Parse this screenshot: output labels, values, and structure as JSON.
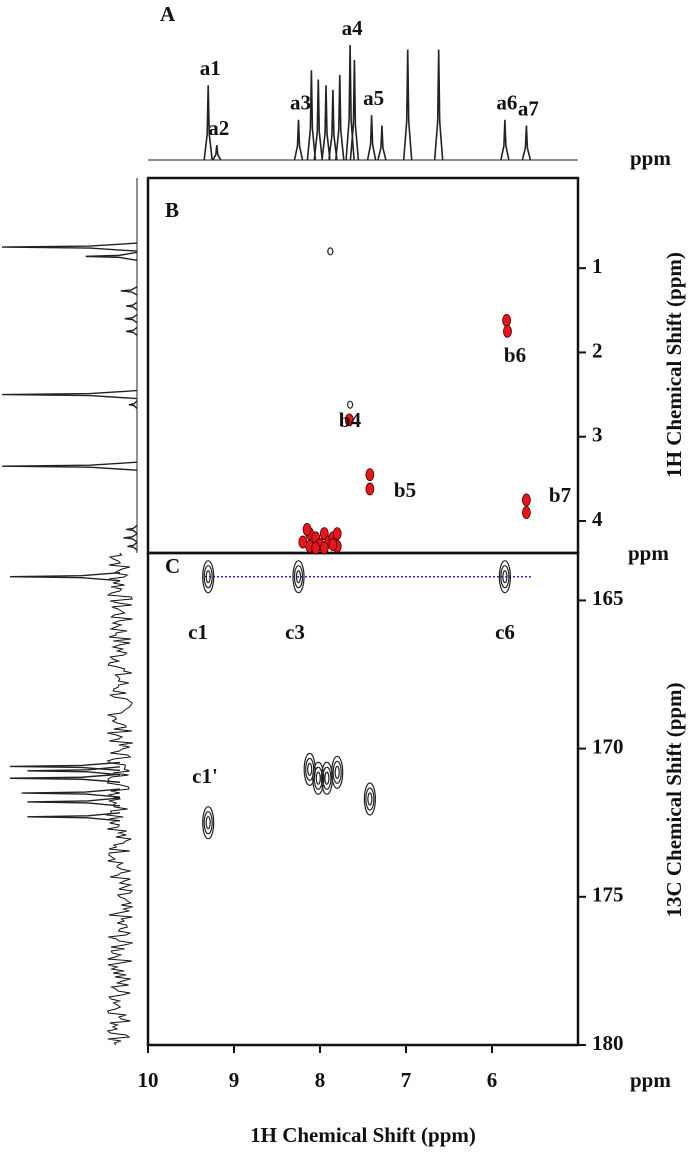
{
  "chart_data": [
    {
      "type": "spectrum",
      "title": "A",
      "unit": "ppm",
      "xlim": [
        10,
        5
      ],
      "color": "#222222",
      "peaks": {
        "x": [
          9.3,
          9.2,
          8.25,
          8.1,
          8.02,
          7.93,
          7.85,
          7.77,
          7.65,
          7.6,
          7.4,
          7.28,
          6.98,
          6.62,
          5.85,
          5.6
        ],
        "values": [
          65,
          13,
          35,
          78,
          70,
          65,
          61,
          74,
          100,
          87,
          39,
          30,
          96,
          96,
          35,
          30
        ],
        "labels": [
          "a1",
          "a2",
          "a3",
          null,
          null,
          null,
          null,
          null,
          "a4",
          null,
          "a5",
          null,
          null,
          null,
          "a6",
          "a7"
        ]
      }
    },
    {
      "type": "contour",
      "title": "B",
      "ylabel": "1H Chemical Shift (ppm)",
      "xlim": [
        10,
        5
      ],
      "ylim": [
        -0.07,
        4.38
      ],
      "yticks": [
        1,
        2,
        3,
        4
      ],
      "series": [
        {
          "color": "#222222",
          "x": [
            7.88,
            7.65
          ],
          "y": [
            0.8,
            2.62
          ]
        },
        {
          "color": "#e8151b",
          "x": [
            5.83,
            5.82,
            7.66,
            7.42,
            7.42,
            5.6,
            5.6,
            8.12,
            8.12,
            8.05,
            8.0,
            7.95,
            7.9,
            7.85,
            7.8,
            8.2,
            8.15,
            8.05,
            7.95,
            7.85,
            7.8
          ],
          "y": [
            1.62,
            1.75,
            2.8,
            3.45,
            3.62,
            3.75,
            3.9,
            4.15,
            4.3,
            4.2,
            4.28,
            4.15,
            4.25,
            4.2,
            4.3,
            4.25,
            4.1,
            4.32,
            4.32,
            4.28,
            4.15
          ]
        }
      ],
      "annotations": [
        "b4",
        "b5",
        "b6",
        "b7"
      ],
      "projection": {
        "y": [
          0.75,
          0.86,
          1.27,
          1.45,
          1.6,
          1.75,
          2.5,
          2.62,
          3.35,
          4.1,
          4.2,
          4.3
        ],
        "values": [
          100,
          38,
          12,
          8,
          9,
          8,
          100,
          6,
          100,
          8,
          10,
          7
        ]
      }
    },
    {
      "type": "contour",
      "title": "C",
      "ylabel": "13C Chemical Shift (ppm)",
      "xlabel": "1H Chemical Shift (ppm)",
      "yunit": "ppm",
      "xunit": "ppm",
      "xlim": [
        10,
        5
      ],
      "ylim": [
        163.4,
        180
      ],
      "xticks": [
        10,
        9,
        8,
        7,
        6
      ],
      "yticks": [
        165,
        170,
        175,
        180
      ],
      "hline": {
        "value": 164.2,
        "color": "#2b2bd6"
      },
      "series": [
        {
          "color": "#222222",
          "x": [
            9.3,
            8.25,
            5.85,
            9.3,
            8.12,
            8.02,
            7.92,
            7.8,
            7.42
          ],
          "y": [
            164.2,
            164.2,
            164.2,
            172.5,
            170.7,
            171.0,
            171.0,
            170.8,
            171.7
          ]
        }
      ],
      "annotations": [
        "c1",
        "c3",
        "c6",
        "c1'"
      ],
      "projection": {
        "y": [
          164.2,
          170.6,
          170.75,
          171.0,
          171.5,
          171.8,
          172.3
        ],
        "values": [
          95,
          95,
          80,
          95,
          85,
          80,
          80
        ]
      }
    }
  ]
}
